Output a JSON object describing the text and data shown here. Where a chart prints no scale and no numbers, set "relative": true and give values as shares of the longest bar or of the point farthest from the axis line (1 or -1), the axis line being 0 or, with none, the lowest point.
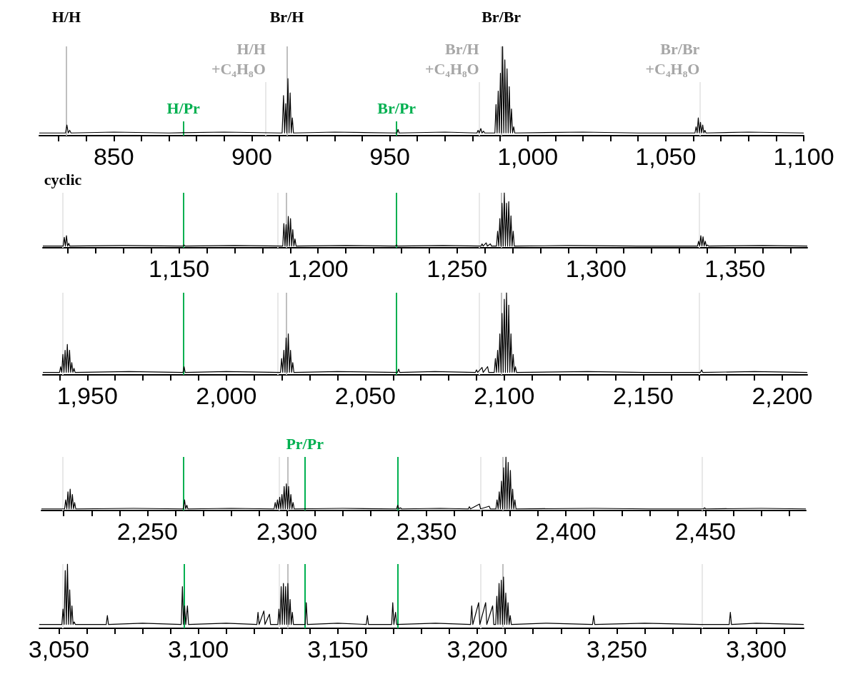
{
  "chart_data": [
    {
      "type": "line",
      "relative": true,
      "tick_labels": "x",
      "xlim": [
        823,
        1100
      ],
      "xticks": [
        {
          "value": 830,
          "label": null
        },
        {
          "value": 840,
          "label": null
        },
        850,
        {
          "value": 860,
          "label": null
        },
        {
          "value": 870,
          "label": null
        },
        {
          "value": 880,
          "label": null
        },
        {
          "value": 890,
          "label": null
        },
        900,
        {
          "value": 910,
          "label": null
        },
        {
          "value": 920,
          "label": null
        },
        {
          "value": 930,
          "label": null
        },
        {
          "value": 940,
          "label": null
        },
        950,
        {
          "value": 960,
          "label": null
        },
        {
          "value": 970,
          "label": null
        },
        {
          "value": 980,
          "label": null
        },
        {
          "value": 990,
          "label": null
        },
        {
          "value": 1000,
          "label": "1,000"
        },
        {
          "value": 1010,
          "label": null
        },
        {
          "value": 1020,
          "label": null
        },
        {
          "value": 1030,
          "label": null
        },
        {
          "value": 1040,
          "label": null
        },
        {
          "value": 1050,
          "label": "1,050"
        },
        {
          "value": 1060,
          "label": null
        },
        {
          "value": 1070,
          "label": null
        },
        {
          "value": 1080,
          "label": null
        },
        {
          "value": 1090,
          "label": null
        },
        {
          "value": 1100,
          "label": "1,100"
        }
      ],
      "x": [
        823,
        832.5,
        833,
        833.5,
        834,
        834.5,
        850,
        870,
        890,
        911,
        911.5,
        911.9,
        912.3,
        912.7,
        913.1,
        913.5,
        913.9,
        914.3,
        914.7,
        915.1,
        930,
        952.6,
        953,
        953.4,
        970,
        981.6,
        982,
        982.4,
        983,
        983.4,
        984,
        984.4,
        988.1,
        988.5,
        988.9,
        989.3,
        989.7,
        990.1,
        990.5,
        990.9,
        991.3,
        991.7,
        992.1,
        992.5,
        992.9,
        993.3,
        993.7,
        994.1,
        994.5,
        994.9,
        995.3,
        1020,
        1040,
        1060.6,
        1061,
        1061.4,
        1061.8,
        1062.2,
        1062.6,
        1063,
        1063.4,
        1063.8,
        1064.2,
        1064.6,
        1080,
        1100
      ],
      "series": [
        {
          "color": "#000000",
          "values": [
            0.03,
            0.03,
            0.12,
            0.03,
            0.06,
            0.03,
            0.04,
            0.03,
            0.04,
            0.03,
            0.45,
            0.03,
            0.36,
            0.03,
            0.64,
            0.03,
            0.48,
            0.03,
            0.2,
            0.03,
            0.04,
            0.03,
            0.07,
            0.03,
            0.04,
            0.03,
            0.06,
            0.03,
            0.08,
            0.03,
            0.05,
            0.03,
            0.03,
            0.35,
            0.03,
            0.5,
            0.03,
            0.7,
            0.03,
            1,
            0.03,
            0.85,
            0.03,
            0.75,
            0.03,
            0.55,
            0.03,
            0.3,
            0.03,
            0.1,
            0.03,
            0.04,
            0.03,
            0.03,
            0.1,
            0.03,
            0.2,
            0.03,
            0.15,
            0.03,
            0.12,
            0.03,
            0.06,
            0.03,
            0.04,
            0.03
          ]
        }
      ],
      "ref_lines": [
        {
          "axis": "x",
          "value": 832.8,
          "label": "H/H",
          "color": "#bfbfbf"
        },
        {
          "axis": "x",
          "value": 905,
          "label": "H/H +C₄H₈O",
          "color": "#e8e8e8"
        },
        {
          "axis": "x",
          "value": 912.7,
          "label": "Br/H",
          "color": "#bfbfbf"
        },
        {
          "axis": "x",
          "value": 982.4,
          "label": "Br/H +C₄H₈O",
          "color": "#e8e8e8"
        },
        {
          "axis": "x",
          "value": 990.4,
          "label": "Br/Br",
          "color": "#bfbfbf"
        },
        {
          "axis": "x",
          "value": 1062.3,
          "label": "Br/Br +C₄H₈O",
          "color": "#e8e8e8"
        },
        {
          "axis": "x",
          "value": 875.2,
          "label": "H/Pr",
          "color": "#00b050"
        },
        {
          "axis": "x",
          "value": 952.5,
          "label": "Br/Pr",
          "color": "#00b050"
        }
      ]
    },
    {
      "type": "line",
      "relative": true,
      "tick_labels": "x",
      "xlim": [
        1101,
        1376
      ],
      "xticks": [
        {
          "value": 1110,
          "label": null
        },
        {
          "value": 1120,
          "label": null
        },
        {
          "value": 1130,
          "label": null
        },
        {
          "value": 1140,
          "label": null
        },
        {
          "value": 1150,
          "label": "1,150"
        },
        {
          "value": 1160,
          "label": null
        },
        {
          "value": 1170,
          "label": null
        },
        {
          "value": 1180,
          "label": null
        },
        {
          "value": 1190,
          "label": null
        },
        {
          "value": 1200,
          "label": "1,200"
        },
        {
          "value": 1210,
          "label": null
        },
        {
          "value": 1220,
          "label": null
        },
        {
          "value": 1230,
          "label": null
        },
        {
          "value": 1240,
          "label": null
        },
        {
          "value": 1250,
          "label": "1,250"
        },
        {
          "value": 1260,
          "label": null
        },
        {
          "value": 1270,
          "label": null
        },
        {
          "value": 1280,
          "label": null
        },
        {
          "value": 1290,
          "label": null
        },
        {
          "value": 1300,
          "label": "1,300"
        },
        {
          "value": 1310,
          "label": null
        },
        {
          "value": 1320,
          "label": null
        },
        {
          "value": 1330,
          "label": null
        },
        {
          "value": 1340,
          "label": null
        },
        {
          "value": 1350,
          "label": "1,350"
        },
        {
          "value": 1360,
          "label": null
        },
        {
          "value": 1370,
          "label": null
        }
      ],
      "x": [
        1101,
        1108.3,
        1108.7,
        1109.1,
        1109.5,
        1109.9,
        1110.3,
        1110.7,
        1130,
        1151.4,
        1151.8,
        1152.2,
        1170,
        1187.3,
        1187.7,
        1188.1,
        1188.5,
        1188.9,
        1189.3,
        1189.7,
        1190.1,
        1190.5,
        1190.9,
        1191.3,
        1191.7,
        1192.1,
        1210,
        1227.8,
        1228.2,
        1228.6,
        1245,
        1258.6,
        1259,
        1259.4,
        1260.5,
        1260.9,
        1262,
        1262.4,
        1264.2,
        1264.6,
        1265,
        1265.4,
        1265.8,
        1266.2,
        1266.6,
        1267,
        1267.4,
        1267.8,
        1268.2,
        1268.6,
        1269,
        1269.4,
        1269.8,
        1270.2,
        1270.6,
        1290,
        1315,
        1336.5,
        1336.9,
        1337.3,
        1337.7,
        1338.1,
        1338.5,
        1338.9,
        1339.3,
        1339.7,
        1340.1,
        1340.5,
        1360,
        1376
      ],
      "series": [
        {
          "color": "#000000",
          "values": [
            0.03,
            0.03,
            0.19,
            0.03,
            0.22,
            0.03,
            0.08,
            0.03,
            0.04,
            0.03,
            0.05,
            0.03,
            0.04,
            0.03,
            0.44,
            0.03,
            0.42,
            0.03,
            0.57,
            0.03,
            0.53,
            0.03,
            0.33,
            0.03,
            0.16,
            0.03,
            0.04,
            0.03,
            0.05,
            0.03,
            0.04,
            0.03,
            0.07,
            0.03,
            0.09,
            0.03,
            0.07,
            0.03,
            0.03,
            0.3,
            0.03,
            0.53,
            0.03,
            0.81,
            0.03,
            1,
            0.03,
            0.81,
            0.03,
            0.84,
            0.03,
            0.58,
            0.03,
            0.3,
            0.03,
            0.04,
            0.03,
            0.03,
            0.12,
            0.03,
            0.22,
            0.03,
            0.2,
            0.03,
            0.12,
            0.03,
            0.05,
            0.03,
            0.04,
            0.03
          ]
        }
      ],
      "ref_lines": [
        {
          "axis": "x",
          "value": 1108.2,
          "label": "cyclic",
          "color": "#e8e8e8"
        },
        {
          "axis": "x",
          "value": 1185.6,
          "color": "#e8e8e8"
        },
        {
          "axis": "x",
          "value": 1188.7,
          "color": "#bfbfbf"
        },
        {
          "axis": "x",
          "value": 1257.9,
          "color": "#e8e8e8"
        },
        {
          "axis": "x",
          "value": 1265.9,
          "color": "#bfbfbf"
        },
        {
          "axis": "x",
          "value": 1337.2,
          "color": "#e8e8e8"
        },
        {
          "axis": "x",
          "value": 1151.5,
          "color": "#00b050"
        },
        {
          "axis": "x",
          "value": 1228.2,
          "color": "#00b050"
        }
      ]
    },
    {
      "type": "line",
      "relative": true,
      "tick_labels": "x",
      "xlim": [
        1934,
        2209
      ],
      "xticks": [
        {
          "value": 1940,
          "label": null
        },
        {
          "value": 1950,
          "label": "1,950"
        },
        {
          "value": 1960,
          "label": null
        },
        {
          "value": 1970,
          "label": null
        },
        {
          "value": 1980,
          "label": null
        },
        {
          "value": 1990,
          "label": null
        },
        {
          "value": 2000,
          "label": "2,000"
        },
        {
          "value": 2010,
          "label": null
        },
        {
          "value": 2020,
          "label": null
        },
        {
          "value": 2030,
          "label": null
        },
        {
          "value": 2040,
          "label": null
        },
        {
          "value": 2050,
          "label": "2,050"
        },
        {
          "value": 2060,
          "label": null
        },
        {
          "value": 2070,
          "label": null
        },
        {
          "value": 2080,
          "label": null
        },
        {
          "value": 2090,
          "label": null
        },
        {
          "value": 2100,
          "label": "2,100"
        },
        {
          "value": 2110,
          "label": null
        },
        {
          "value": 2120,
          "label": null
        },
        {
          "value": 2130,
          "label": null
        },
        {
          "value": 2140,
          "label": null
        },
        {
          "value": 2150,
          "label": "2,150"
        },
        {
          "value": 2160,
          "label": null
        },
        {
          "value": 2170,
          "label": null
        },
        {
          "value": 2180,
          "label": null
        },
        {
          "value": 2190,
          "label": null
        },
        {
          "value": 2200,
          "label": "2,200"
        }
      ],
      "x": [
        1934,
        1940,
        1940.4,
        1940.8,
        1941.2,
        1941.6,
        1942,
        1942.4,
        1942.8,
        1943.2,
        1943.6,
        1944,
        1944.4,
        1944.8,
        1945.2,
        1945.6,
        1965,
        1984.4,
        1984.8,
        1985.2,
        2000,
        2019.5,
        2019.9,
        2020.3,
        2020.7,
        2021.1,
        2021.5,
        2021.9,
        2022.3,
        2022.7,
        2023.1,
        2023.5,
        2023.9,
        2024.3,
        2040,
        2061.6,
        2062,
        2062.4,
        2075,
        2089.6,
        2090,
        2090.4,
        2092,
        2092.4,
        2094,
        2094.4,
        2096.4,
        2096.8,
        2097.2,
        2097.6,
        2098,
        2098.4,
        2098.8,
        2099.2,
        2099.6,
        2100,
        2100.4,
        2100.8,
        2101.2,
        2101.6,
        2102,
        2102.4,
        2102.8,
        2103.2,
        2103.6,
        2104,
        2104.4,
        2130,
        2150,
        2170.6,
        2171,
        2171.4,
        2190,
        2209
      ],
      "series": [
        {
          "color": "#000000",
          "values": [
            0.03,
            0.03,
            0.1,
            0.03,
            0.25,
            0.03,
            0.3,
            0.03,
            0.37,
            0.03,
            0.3,
            0.03,
            0.15,
            0.03,
            0.08,
            0.03,
            0.04,
            0.03,
            0.1,
            0.03,
            0.04,
            0.03,
            0.2,
            0.03,
            0.3,
            0.03,
            0.45,
            0.03,
            0.5,
            0.03,
            0.3,
            0.03,
            0.15,
            0.03,
            0.04,
            0.03,
            0.07,
            0.03,
            0.04,
            0.03,
            0.06,
            0.03,
            0.09,
            0.03,
            0.1,
            0.03,
            0.03,
            0.2,
            0.03,
            0.3,
            0.03,
            0.5,
            0.03,
            0.75,
            0.03,
            0.92,
            0.03,
            1,
            0.03,
            0.85,
            0.03,
            0.5,
            0.03,
            0.25,
            0.03,
            0.1,
            0.03,
            0.04,
            0.03,
            0.03,
            0.06,
            0.03,
            0.04,
            0.03
          ]
        }
      ],
      "ref_lines": [
        {
          "axis": "x",
          "value": 1941.2,
          "color": "#e8e8e8"
        },
        {
          "axis": "x",
          "value": 2018.6,
          "color": "#e8e8e8"
        },
        {
          "axis": "x",
          "value": 2021.7,
          "color": "#bfbfbf"
        },
        {
          "axis": "x",
          "value": 2090.9,
          "color": "#e8e8e8"
        },
        {
          "axis": "x",
          "value": 2098.9,
          "color": "#bfbfbf"
        },
        {
          "axis": "x",
          "value": 2170.2,
          "color": "#e8e8e8"
        },
        {
          "axis": "x",
          "value": 1984.5,
          "color": "#00b050"
        },
        {
          "axis": "x",
          "value": 2061.2,
          "color": "#00b050"
        }
      ]
    },
    {
      "type": "line",
      "relative": true,
      "tick_labels": "x",
      "xlim": [
        2212,
        2486
      ],
      "xticks": [
        {
          "value": 2220,
          "label": null
        },
        {
          "value": 2230,
          "label": null
        },
        {
          "value": 2240,
          "label": null
        },
        {
          "value": 2250,
          "label": "2,250"
        },
        {
          "value": 2260,
          "label": null
        },
        {
          "value": 2270,
          "label": null
        },
        {
          "value": 2280,
          "label": null
        },
        {
          "value": 2290,
          "label": null
        },
        {
          "value": 2300,
          "label": "2,300"
        },
        {
          "value": 2310,
          "label": null
        },
        {
          "value": 2320,
          "label": null
        },
        {
          "value": 2330,
          "label": null
        },
        {
          "value": 2340,
          "label": null
        },
        {
          "value": 2350,
          "label": "2,350"
        },
        {
          "value": 2360,
          "label": null
        },
        {
          "value": 2370,
          "label": null
        },
        {
          "value": 2380,
          "label": null
        },
        {
          "value": 2390,
          "label": null
        },
        {
          "value": 2400,
          "label": "2,400"
        },
        {
          "value": 2410,
          "label": null
        },
        {
          "value": 2420,
          "label": null
        },
        {
          "value": 2430,
          "label": null
        },
        {
          "value": 2440,
          "label": null
        },
        {
          "value": 2450,
          "label": "2,450"
        },
        {
          "value": 2460,
          "label": null
        },
        {
          "value": 2470,
          "label": null
        },
        {
          "value": 2480,
          "label": null
        }
      ],
      "x": [
        2212,
        2220.3,
        2220.7,
        2221.1,
        2221.5,
        2221.9,
        2222.3,
        2222.7,
        2223.1,
        2223.5,
        2223.9,
        2224.3,
        2245,
        2262.9,
        2263.3,
        2263.7,
        2264.1,
        2264.5,
        2280,
        2295.4,
        2295.8,
        2296.2,
        2296.6,
        2297,
        2297.4,
        2297.8,
        2298.2,
        2298.6,
        2299,
        2299.4,
        2299.8,
        2300.2,
        2300.6,
        2301,
        2301.4,
        2301.8,
        2302.2,
        2302.6,
        2320,
        2339.3,
        2339.7,
        2340.1,
        2340.7,
        2341.1,
        2355,
        2365,
        2365.4,
        2365.8,
        2369,
        2369.4,
        2372.5,
        2372.9,
        2374.9,
        2375.3,
        2375.7,
        2376.1,
        2376.5,
        2376.9,
        2377.3,
        2377.7,
        2378.1,
        2378.5,
        2378.9,
        2379.3,
        2379.7,
        2380.1,
        2380.5,
        2380.9,
        2381.3,
        2381.7,
        2382.1,
        2410,
        2430,
        2449.3,
        2449.7,
        2450.1,
        2470,
        2486
      ],
      "series": [
        {
          "color": "#000000",
          "values": [
            0.03,
            0.03,
            0.2,
            0.03,
            0.35,
            0.03,
            0.4,
            0.03,
            0.3,
            0.03,
            0.15,
            0.03,
            0.04,
            0.03,
            0.2,
            0.03,
            0.1,
            0.03,
            0.04,
            0.03,
            0.15,
            0.03,
            0.2,
            0.03,
            0.25,
            0.03,
            0.3,
            0.03,
            0.45,
            0.03,
            0.5,
            0.03,
            0.45,
            0.03,
            0.3,
            0.03,
            0.15,
            0.03,
            0.04,
            0.03,
            0.1,
            0.03,
            0.05,
            0.03,
            0.04,
            0.03,
            0.07,
            0.03,
            0.12,
            0.03,
            0.08,
            0.03,
            0.03,
            0.2,
            0.03,
            0.35,
            0.03,
            0.55,
            0.03,
            0.8,
            0.03,
            1,
            0.03,
            0.9,
            0.03,
            0.75,
            0.03,
            0.4,
            0.03,
            0.2,
            0.03,
            0.04,
            0.03,
            0.03,
            0.05,
            0.03,
            0.04,
            0.03
          ]
        }
      ],
      "ref_lines": [
        {
          "axis": "x",
          "value": 2219.7,
          "color": "#e8e8e8"
        },
        {
          "axis": "x",
          "value": 2297.1,
          "color": "#e8e8e8"
        },
        {
          "axis": "x",
          "value": 2300.2,
          "color": "#bfbfbf"
        },
        {
          "axis": "x",
          "value": 2369.4,
          "color": "#e8e8e8"
        },
        {
          "axis": "x",
          "value": 2377.4,
          "color": "#bfbfbf"
        },
        {
          "axis": "x",
          "value": 2448.7,
          "color": "#e8e8e8"
        },
        {
          "axis": "x",
          "value": 2263,
          "color": "#00b050"
        },
        {
          "axis": "x",
          "value": 2339.7,
          "color": "#00b050"
        },
        {
          "axis": "x",
          "value": 2306.4,
          "label": "Pr/Pr",
          "color": "#00b050"
        }
      ]
    },
    {
      "type": "line",
      "relative": true,
      "tick_labels": "x",
      "xlim": [
        3043,
        3317
      ],
      "xticks": [
        {
          "value": 3050,
          "label": "3,050"
        },
        {
          "value": 3060,
          "label": null
        },
        {
          "value": 3070,
          "label": null
        },
        {
          "value": 3080,
          "label": null
        },
        {
          "value": 3090,
          "label": null
        },
        {
          "value": 3100,
          "label": "3,100"
        },
        {
          "value": 3110,
          "label": null
        },
        {
          "value": 3120,
          "label": null
        },
        {
          "value": 3130,
          "label": null
        },
        {
          "value": 3140,
          "label": null
        },
        {
          "value": 3150,
          "label": "3,150"
        },
        {
          "value": 3160,
          "label": null
        },
        {
          "value": 3170,
          "label": null
        },
        {
          "value": 3180,
          "label": null
        },
        {
          "value": 3190,
          "label": null
        },
        {
          "value": 3200,
          "label": "3,200"
        },
        {
          "value": 3210,
          "label": null
        },
        {
          "value": 3220,
          "label": null
        },
        {
          "value": 3230,
          "label": null
        },
        {
          "value": 3240,
          "label": null
        },
        {
          "value": 3250,
          "label": "3,250"
        },
        {
          "value": 3260,
          "label": null
        },
        {
          "value": 3270,
          "label": null
        },
        {
          "value": 3280,
          "label": null
        },
        {
          "value": 3290,
          "label": null
        },
        {
          "value": 3300,
          "label": "3,300"
        },
        {
          "value": 3310,
          "label": null
        }
      ],
      "x": [
        3043,
        3051.1,
        3051.5,
        3051.9,
        3052.3,
        3052.7,
        3053.1,
        3053.5,
        3053.9,
        3054.3,
        3054.7,
        3055.1,
        3055.5,
        3055.9,
        3067,
        3067.4,
        3067.8,
        3080,
        3093.9,
        3094.3,
        3094.7,
        3095.1,
        3095.5,
        3096.1,
        3096.5,
        3110,
        3121,
        3121.4,
        3121.8,
        3123.5,
        3123.9,
        3125.5,
        3125.9,
        3128.5,
        3128.9,
        3129.3,
        3129.7,
        3130.1,
        3130.5,
        3130.9,
        3131.3,
        3131.7,
        3132.1,
        3132.5,
        3132.9,
        3133.3,
        3133.7,
        3134.1,
        3138.3,
        3138.7,
        3139.1,
        3150,
        3160.2,
        3160.6,
        3161,
        3169.3,
        3169.7,
        3170.1,
        3170.7,
        3171.1,
        3185,
        3197.6,
        3198,
        3198.4,
        3200.5,
        3200.9,
        3203,
        3203.4,
        3205.5,
        3205.9,
        3206.6,
        3207,
        3207.4,
        3207.8,
        3208.2,
        3208.6,
        3209,
        3209.4,
        3209.8,
        3210.2,
        3210.6,
        3211,
        3211.4,
        3211.8,
        3212.2,
        3225,
        3241.3,
        3241.7,
        3242.1,
        3260,
        3280,
        3290.3,
        3290.7,
        3291.1,
        3300,
        3317
      ],
      "series": [
        {
          "color": "#000000",
          "values": [
            0.06,
            0.06,
            0.3,
            0.06,
            0.9,
            0.06,
            1,
            0.06,
            0.6,
            0.06,
            0.35,
            0.06,
            0.1,
            0.06,
            0.06,
            0.2,
            0.06,
            0.08,
            0.06,
            0.65,
            0.06,
            0.35,
            0.06,
            0.35,
            0.06,
            0.08,
            0.06,
            0.25,
            0.06,
            0.27,
            0.06,
            0.22,
            0.06,
            0.06,
            0.3,
            0.06,
            0.65,
            0.06,
            0.7,
            0.06,
            0.65,
            0.06,
            0.7,
            0.06,
            0.45,
            0.06,
            0.25,
            0.06,
            0.06,
            0.4,
            0.06,
            0.08,
            0.06,
            0.2,
            0.06,
            0.06,
            0.4,
            0.06,
            0.25,
            0.06,
            0.08,
            0.06,
            0.35,
            0.06,
            0.4,
            0.06,
            0.4,
            0.06,
            0.35,
            0.06,
            0.06,
            0.5,
            0.06,
            0.7,
            0.06,
            0.75,
            0.06,
            0.8,
            0.06,
            0.55,
            0.06,
            0.4,
            0.06,
            0.2,
            0.06,
            0.08,
            0.06,
            0.2,
            0.06,
            0.08,
            0.06,
            0.06,
            0.25,
            0.06,
            0.08,
            0.06
          ]
        }
      ],
      "ref_lines": [
        {
          "axis": "x",
          "value": 3051.5,
          "color": "#e8e8e8"
        },
        {
          "axis": "x",
          "value": 3128.9,
          "color": "#e8e8e8"
        },
        {
          "axis": "x",
          "value": 3132,
          "color": "#bfbfbf"
        },
        {
          "axis": "x",
          "value": 3201.2,
          "color": "#e8e8e8"
        },
        {
          "axis": "x",
          "value": 3209.2,
          "color": "#bfbfbf"
        },
        {
          "axis": "x",
          "value": 3280.5,
          "color": "#e8e8e8"
        },
        {
          "axis": "x",
          "value": 3094.8,
          "color": "#00b050"
        },
        {
          "axis": "x",
          "value": 3171.5,
          "color": "#00b050"
        },
        {
          "axis": "x",
          "value": 3138.1,
          "color": "#00b050"
        }
      ]
    }
  ]
}
